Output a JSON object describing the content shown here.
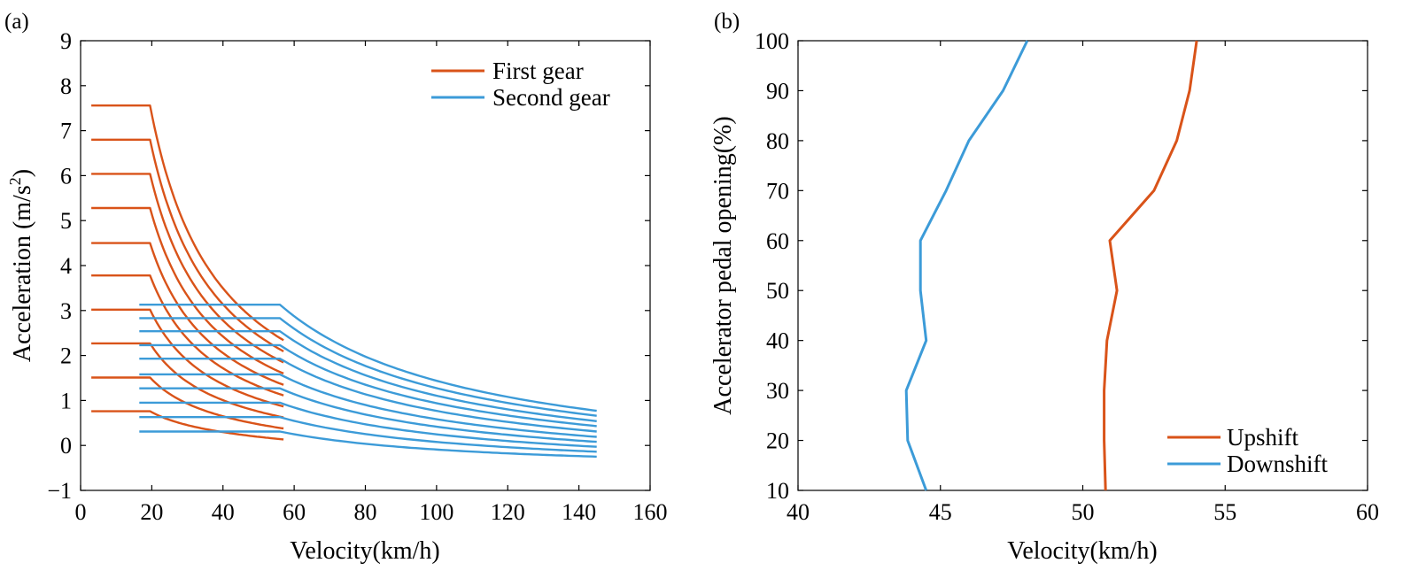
{
  "panel_labels": {
    "a": "(a)",
    "b": "(b)"
  },
  "colors": {
    "first_gear": "#D95319",
    "second_gear": "#3C9BD8",
    "upshift": "#D95319",
    "downshift": "#3C9BD8"
  },
  "chart_data": [
    {
      "id": "a",
      "type": "line",
      "xlabel": "Velocity(km/h)",
      "ylabel": "Acceleration (m/s",
      "ylabel_sup": "2",
      "ylabel_close": ")",
      "xlim": [
        0,
        160
      ],
      "ylim": [
        -1,
        9
      ],
      "xticks": [
        "0",
        "20",
        "40",
        "60",
        "80",
        "100",
        "120",
        "140",
        "160"
      ],
      "yticks": [
        "−1",
        "0",
        "1",
        "2",
        "3",
        "4",
        "5",
        "6",
        "7",
        "8",
        "9"
      ],
      "legend": [
        {
          "label": "First gear",
          "color_key": "first_gear"
        },
        {
          "label": "Second gear",
          "color_key": "second_gear"
        }
      ],
      "series": [
        {
          "name": "First gear",
          "x_start": 3,
          "x_knee": 19.5,
          "x_end": 57,
          "plateaus": [
            0.76,
            1.51,
            2.27,
            3.02,
            3.78,
            4.5,
            5.28,
            6.04,
            6.8,
            7.56
          ]
        },
        {
          "name": "Second gear",
          "x_start": 16.5,
          "x_knee": 56,
          "x_end": 145,
          "plateaus": [
            0.31,
            0.63,
            0.95,
            1.27,
            1.58,
            1.93,
            2.23,
            2.54,
            2.83,
            3.13
          ],
          "end_values": [
            -0.25,
            -0.14,
            -0.03,
            0.08,
            0.19,
            0.31,
            0.43,
            0.54,
            0.66,
            0.77
          ]
        }
      ]
    },
    {
      "id": "b",
      "type": "line",
      "xlabel": "Velocity(km/h)",
      "ylabel": "Accelerator pedal opening(%)",
      "xlim": [
        40,
        60
      ],
      "ylim": [
        10,
        100
      ],
      "xticks": [
        "40",
        "45",
        "50",
        "55",
        "60"
      ],
      "yticks": [
        "10",
        "20",
        "30",
        "40",
        "50",
        "60",
        "70",
        "80",
        "90",
        "100"
      ],
      "legend": [
        {
          "label": "Upshift",
          "color_key": "upshift"
        },
        {
          "label": "Downshift",
          "color_key": "downshift"
        }
      ],
      "series": [
        {
          "name": "Upshift",
          "y": [
            10,
            20,
            30,
            40,
            50,
            60,
            70,
            80,
            90,
            100
          ],
          "x": [
            50.8,
            50.75,
            50.75,
            50.85,
            51.2,
            50.95,
            52.5,
            53.3,
            53.75,
            54.0
          ]
        },
        {
          "name": "Downshift",
          "y": [
            10,
            20,
            30,
            40,
            50,
            60,
            70,
            80,
            90,
            100
          ],
          "x": [
            44.5,
            43.85,
            43.8,
            44.5,
            44.3,
            44.3,
            45.2,
            46.0,
            47.2,
            48.05
          ]
        }
      ]
    }
  ]
}
